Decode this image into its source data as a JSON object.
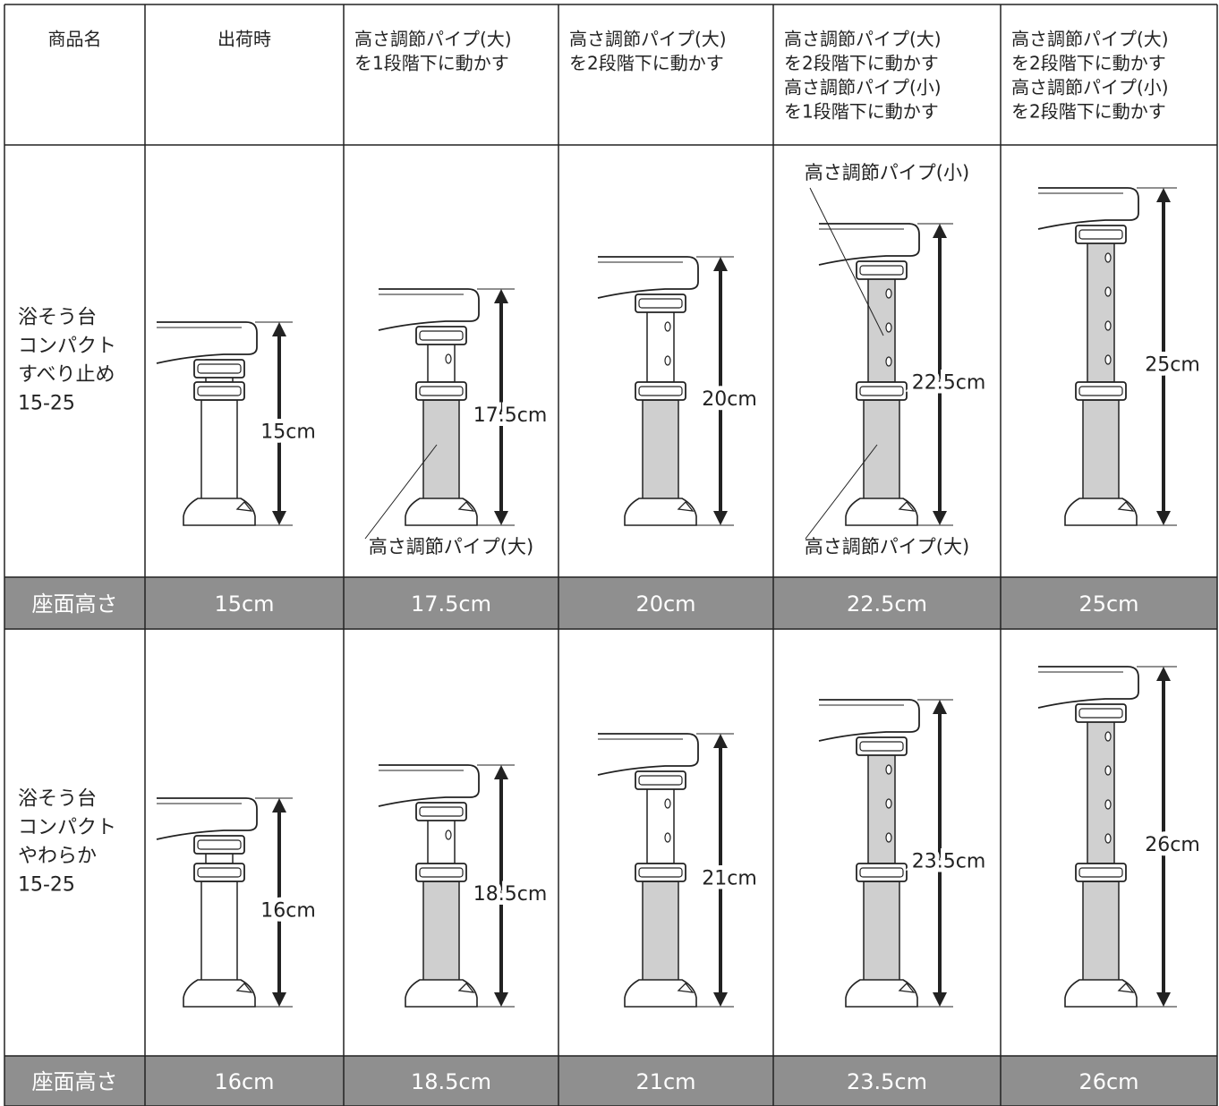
{
  "table": {
    "header": [
      [
        "商品名"
      ],
      [
        "出荷時"
      ],
      [
        "高さ調節パイプ(大)",
        "を1段階下に動かす"
      ],
      [
        "高さ調節パイプ(大)",
        "を2段階下に動かす"
      ],
      [
        "高さ調節パイプ(大)",
        "を2段階下に動かす",
        "高さ調節パイプ(小)",
        "を1段階下に動かす"
      ],
      [
        "高さ調節パイプ(大)",
        "を2段階下に動かす",
        "高さ調節パイプ(小)",
        "を2段階下に動かす"
      ]
    ],
    "products": [
      {
        "name": [
          "浴そう台",
          "コンパクト",
          "すべり止め",
          "15-25"
        ],
        "diagrams": [
          {
            "dimension": "15cm"
          },
          {
            "dimension": "17.5cm",
            "bottom_label": "高さ調節パイプ(大)"
          },
          {
            "dimension": "20cm"
          },
          {
            "dimension": "22.5cm",
            "top_label": "高さ調節パイプ(小)",
            "bottom_label": "高さ調節パイプ(大)"
          },
          {
            "dimension": "25cm"
          }
        ],
        "seat_height_label": "座面高さ",
        "seat_heights": [
          "15cm",
          "17.5cm",
          "20cm",
          "22.5cm",
          "25cm"
        ]
      },
      {
        "name": [
          "浴そう台",
          "コンパクト",
          "やわらか",
          "15-25"
        ],
        "diagrams": [
          {
            "dimension": "16cm"
          },
          {
            "dimension": "18.5cm"
          },
          {
            "dimension": "21cm"
          },
          {
            "dimension": "23.5cm"
          },
          {
            "dimension": "26cm"
          }
        ],
        "seat_height_label": "座面高さ",
        "seat_heights": [
          "16cm",
          "18.5cm",
          "21cm",
          "23.5cm",
          "26cm"
        ]
      }
    ]
  }
}
